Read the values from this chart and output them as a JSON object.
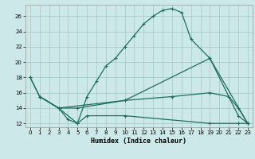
{
  "xlabel": "Humidex (Indice chaleur)",
  "background_color": "#cde8e8",
  "grid_color": "#a8cccc",
  "line_color": "#1e6e5e",
  "xlim": [
    -0.5,
    23.5
  ],
  "ylim": [
    11.5,
    27.5
  ],
  "xticks": [
    0,
    1,
    2,
    3,
    4,
    5,
    6,
    7,
    8,
    9,
    10,
    11,
    12,
    13,
    14,
    15,
    16,
    17,
    18,
    19,
    20,
    21,
    22,
    23
  ],
  "yticks": [
    12,
    14,
    16,
    18,
    20,
    22,
    24,
    26
  ],
  "line1_x": [
    0,
    1,
    3,
    4,
    5,
    6,
    7,
    8,
    9,
    10,
    11,
    12,
    13,
    14,
    15,
    16,
    17,
    19,
    22,
    23
  ],
  "line1_y": [
    18,
    15.5,
    14,
    12.5,
    12,
    15.5,
    17.5,
    19.5,
    20.5,
    22,
    23.5,
    25,
    26,
    26.8,
    27,
    26.5,
    23,
    20.5,
    13,
    12
  ],
  "line2_x": [
    0,
    1,
    3,
    5,
    10,
    15,
    19,
    21,
    22,
    23
  ],
  "line2_y": [
    18,
    15.5,
    14,
    14,
    15,
    15.5,
    16,
    15.5,
    14,
    12
  ],
  "line3_x": [
    1,
    3,
    10,
    19,
    23
  ],
  "line3_y": [
    15.5,
    14,
    15,
    20.5,
    12
  ],
  "line4_x": [
    1,
    3,
    5,
    6,
    10,
    19,
    22,
    23
  ],
  "line4_y": [
    15.5,
    14,
    12,
    13,
    13,
    12,
    12,
    12
  ]
}
